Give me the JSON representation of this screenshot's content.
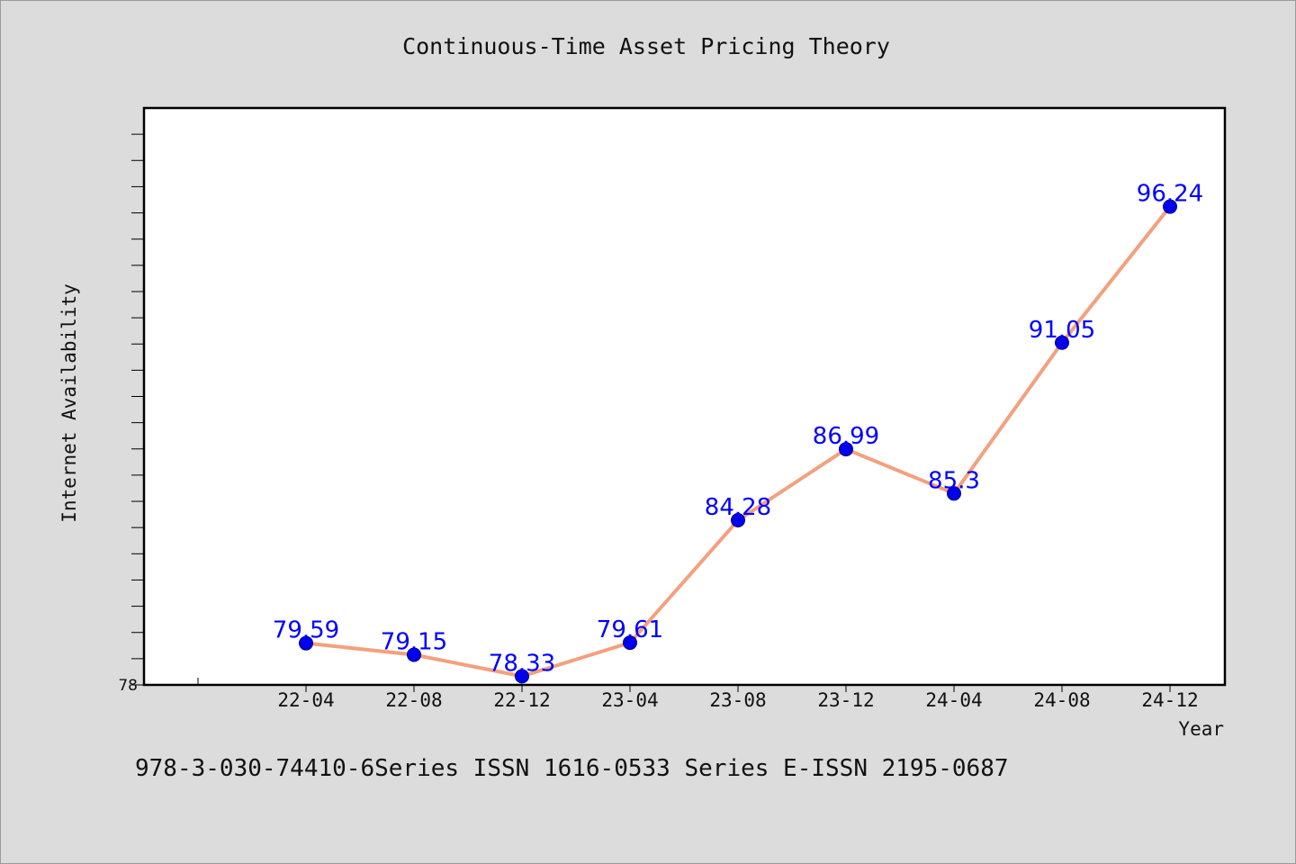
{
  "chart_data": {
    "type": "line",
    "title": "Continuous-Time Asset Pricing Theory",
    "xlabel": "Year",
    "ylabel": "Internet Availability",
    "categories": [
      "22-04",
      "22-08",
      "22-12",
      "23-04",
      "23-08",
      "23-12",
      "24-04",
      "24-08",
      "24-12"
    ],
    "series": [
      {
        "values": [
          79.59,
          79.15,
          78.33,
          79.61,
          84.28,
          86.99,
          85.3,
          91.05,
          96.24
        ],
        "labels": [
          "79.59",
          "79.15",
          "78.33",
          "79.61",
          "84.28",
          "86.99",
          "85.3",
          "91.05",
          "96.24"
        ]
      }
    ],
    "ylim": [
      78,
      100
    ],
    "y_tick_labels": [
      "78"
    ],
    "grid": false,
    "colors": {
      "line": "#f4a07e",
      "marker": "#0000ee",
      "label": "#0000ff"
    }
  },
  "footer": {
    "text": "978-3-030-74410-6Series ISSN 1616-0533 Series E-ISSN 2195-0687"
  }
}
